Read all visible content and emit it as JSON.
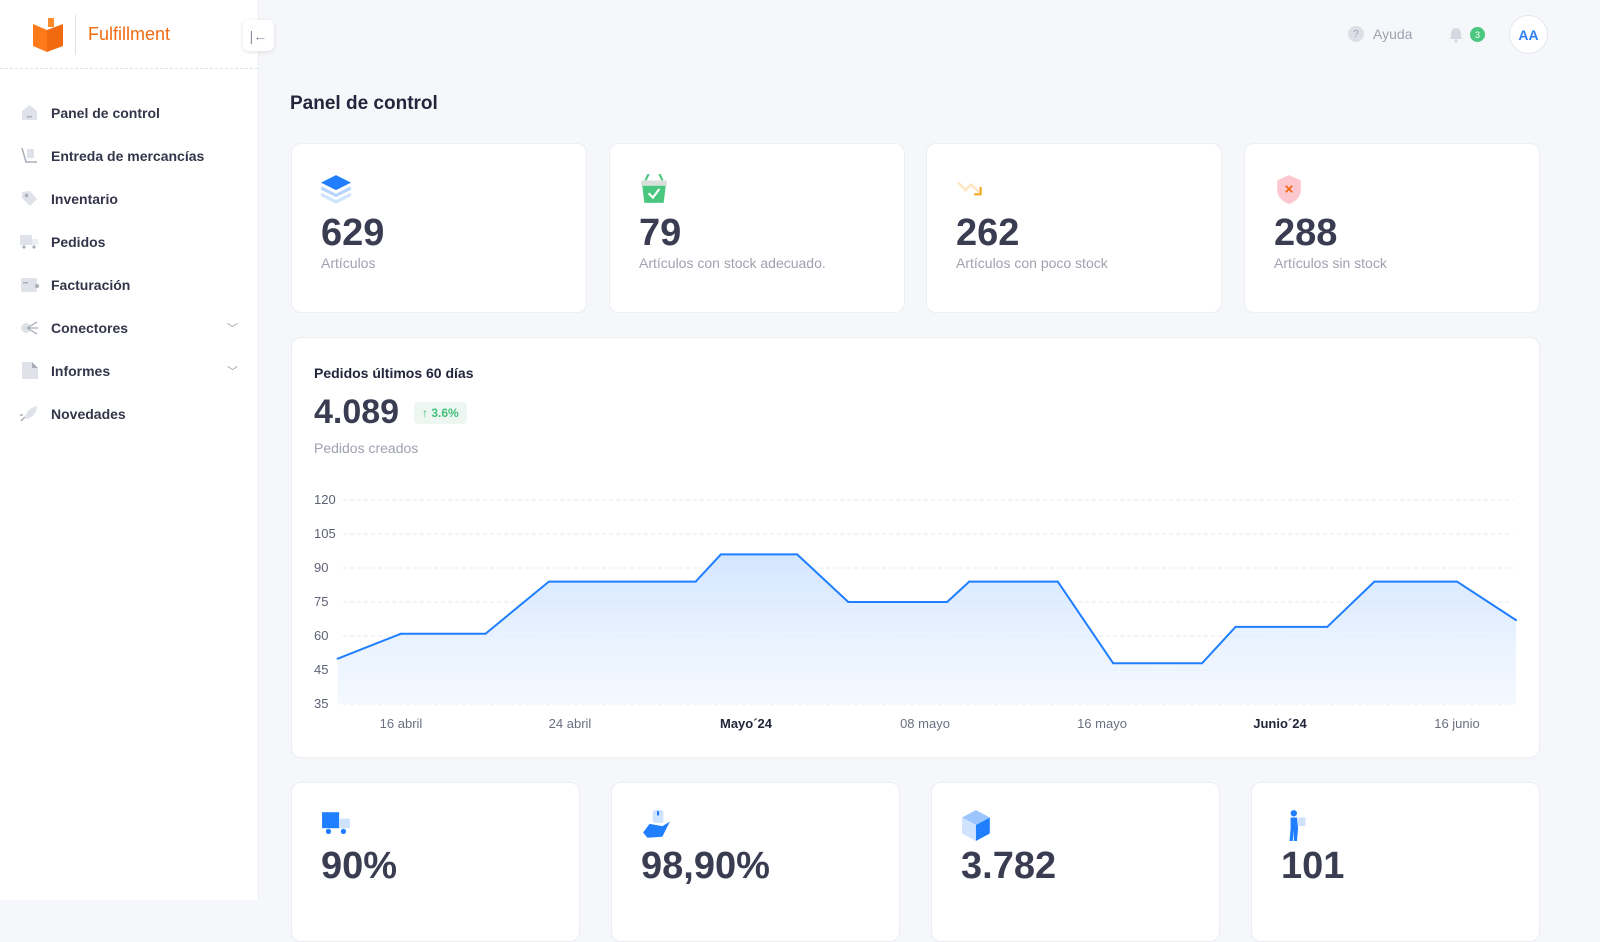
{
  "app": {
    "name": "Fulfillment",
    "brand_color": "#f26a10",
    "accent": "#1f7fff"
  },
  "sidebar": {
    "items": [
      {
        "label": "Panel de control",
        "icon": "home-icon"
      },
      {
        "label": "Entreda de mercancías",
        "icon": "hand-truck-icon"
      },
      {
        "label": "Inventario",
        "icon": "tag-icon"
      },
      {
        "label": "Pedidos",
        "icon": "truck-icon"
      },
      {
        "label": "Facturación",
        "icon": "wallet-icon"
      },
      {
        "label": "Conectores",
        "icon": "connectors-icon",
        "expandable": true
      },
      {
        "label": "Informes",
        "icon": "document-icon",
        "expandable": true
      },
      {
        "label": "Novedades",
        "icon": "rocket-icon"
      }
    ]
  },
  "header": {
    "help": "Ayuda",
    "notifications": "3",
    "avatar": "AA"
  },
  "page": {
    "title": "Panel de control"
  },
  "stats": [
    {
      "value": "629",
      "label": "Artículos",
      "icon": "layers-icon"
    },
    {
      "value": "79",
      "label": "Artículos con stock adecuado.",
      "icon": "basket-check-icon"
    },
    {
      "value": "262",
      "label": "Artículos con poco stock",
      "icon": "trend-down-icon"
    },
    {
      "value": "288",
      "label": "Artículos sin stock",
      "icon": "shield-x-icon"
    }
  ],
  "orders": {
    "title": "Pedidos últimos 60 días",
    "value": "4.089",
    "change": "3.6%",
    "subtitle": "Pedidos creados"
  },
  "chart_data": {
    "type": "area",
    "title": "",
    "xlabel": "",
    "ylabel": "",
    "y_ticks": [
      "120",
      "105",
      "90",
      "75",
      "60",
      "45",
      "35"
    ],
    "x_ticks": [
      {
        "label": "16 abril",
        "date": "2024-04-16",
        "bold": false
      },
      {
        "label": "24 abril",
        "date": "2024-04-24",
        "bold": false
      },
      {
        "label": "Mayo´24",
        "date": "2024-05-01",
        "bold": true
      },
      {
        "label": "08 mayo",
        "date": "2024-05-08",
        "bold": false
      },
      {
        "label": "16 mayo",
        "date": "2024-05-16",
        "bold": false
      },
      {
        "label": "Junio´24",
        "date": "2024-06-01",
        "bold": true
      },
      {
        "label": "16 junio",
        "date": "2024-06-16",
        "bold": false
      }
    ],
    "grid": true,
    "line_color": "#1f7fff",
    "points": [
      [
        "2024-04-13",
        50
      ],
      [
        "2024-04-16",
        61
      ],
      [
        "2024-04-20",
        61
      ],
      [
        "2024-04-23",
        84
      ],
      [
        "2024-04-29",
        84
      ],
      [
        "2024-04-30",
        96
      ],
      [
        "2024-05-03",
        96
      ],
      [
        "2024-05-05",
        75
      ],
      [
        "2024-05-09",
        75
      ],
      [
        "2024-05-10",
        84
      ],
      [
        "2024-05-14",
        84
      ],
      [
        "2024-05-17",
        48
      ],
      [
        "2024-05-25",
        48
      ],
      [
        "2024-05-28",
        64
      ],
      [
        "2024-06-05",
        64
      ],
      [
        "2024-06-09",
        84
      ],
      [
        "2024-06-16",
        84
      ],
      [
        "2024-06-21",
        67
      ]
    ]
  },
  "kpis": [
    {
      "value": "90%",
      "icon": "delivery-truck-icon"
    },
    {
      "value": "98,90%",
      "icon": "hand-package-icon"
    },
    {
      "value": "3.782",
      "icon": "box-icon"
    },
    {
      "value": "101",
      "icon": "worker-icon"
    }
  ]
}
